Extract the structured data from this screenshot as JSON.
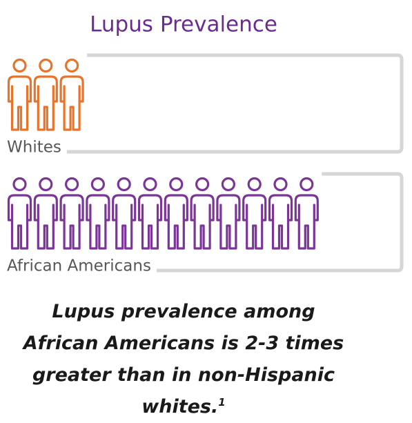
{
  "chart_data": {
    "type": "pictograph",
    "title": "Lupus Prevalence",
    "categories": [
      "Whites",
      "African Americans"
    ],
    "values": [
      3,
      12
    ],
    "colors": [
      "#e8732a",
      "#7a3596"
    ],
    "caption": "Lupus prevalence among African Americans is 2-3 times greater than in non-Hispanic whites.",
    "footnote_marker": "1"
  }
}
